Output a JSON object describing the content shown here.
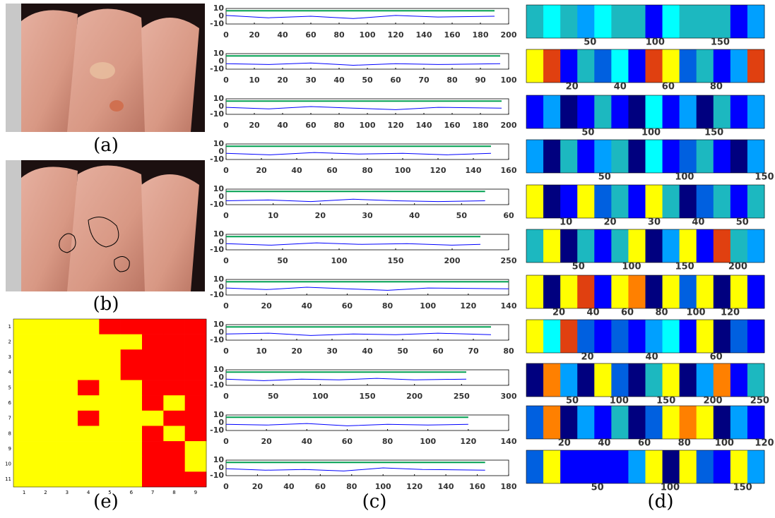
{
  "panel_labels": [
    "(a)",
    "(b)",
    "(e)",
    "(c)",
    "(d)"
  ],
  "chart_data": [
    {
      "type": "heatmap",
      "colors": [
        "#ffff00",
        "#ff0000"
      ],
      "xlim": [
        0.5,
        9.5
      ],
      "ylim": [
        0.5,
        11.5
      ],
      "xticks": [
        1,
        2,
        3,
        4,
        5,
        6,
        7,
        8,
        9
      ],
      "yticks": [
        1,
        2,
        3,
        4,
        5,
        6,
        7,
        8,
        9,
        10,
        11
      ],
      "values": [
        [
          0,
          0,
          0,
          0,
          1,
          1,
          1,
          1,
          1
        ],
        [
          0,
          0,
          0,
          0,
          0,
          0,
          1,
          1,
          1
        ],
        [
          0,
          0,
          0,
          0,
          0,
          1,
          1,
          1,
          1
        ],
        [
          0,
          0,
          0,
          0,
          0,
          1,
          1,
          1,
          1
        ],
        [
          0,
          0,
          0,
          1,
          0,
          0,
          1,
          1,
          1
        ],
        [
          0,
          0,
          0,
          0,
          0,
          0,
          1,
          0,
          1
        ],
        [
          0,
          0,
          0,
          1,
          0,
          0,
          0,
          1,
          1
        ],
        [
          0,
          0,
          0,
          0,
          0,
          0,
          1,
          0,
          1
        ],
        [
          0,
          0,
          0,
          0,
          0,
          0,
          1,
          1,
          0
        ],
        [
          0,
          0,
          0,
          0,
          0,
          0,
          1,
          1,
          0
        ],
        [
          0,
          0,
          0,
          0,
          0,
          0,
          1,
          1,
          1
        ]
      ]
    },
    {
      "type": "line",
      "xlim": [
        0,
        200
      ],
      "xticks": [
        0,
        20,
        40,
        60,
        80,
        100,
        120,
        140,
        160,
        180,
        200
      ],
      "ylim": [
        -10,
        10
      ],
      "yticks": [
        -10,
        0,
        10
      ],
      "x": [
        0,
        30,
        60,
        90,
        120,
        150,
        190
      ],
      "series": [
        {
          "color": "#0000ff",
          "values": [
            1,
            -2,
            0,
            -3,
            1,
            -1,
            0
          ]
        },
        {
          "color": "#00a050",
          "values": [
            7,
            7,
            7,
            7,
            7,
            7,
            7
          ]
        }
      ]
    },
    {
      "type": "line",
      "xlim": [
        0,
        100
      ],
      "xticks": [
        0,
        10,
        20,
        30,
        40,
        50,
        60,
        70,
        80,
        90,
        100
      ],
      "ylim": [
        -10,
        10
      ],
      "yticks": [
        -10,
        0,
        10
      ],
      "x": [
        0,
        15,
        30,
        45,
        60,
        75,
        97
      ],
      "series": [
        {
          "color": "#0000ff",
          "values": [
            -3,
            -4,
            -2,
            -5,
            -3,
            -4,
            -3
          ]
        },
        {
          "color": "#00a050",
          "values": [
            7,
            7,
            7,
            7,
            7,
            7,
            7
          ]
        }
      ]
    },
    {
      "type": "line",
      "xlim": [
        0,
        200
      ],
      "xticks": [
        0,
        20,
        40,
        60,
        80,
        100,
        120,
        140,
        160,
        180,
        200
      ],
      "ylim": [
        -10,
        10
      ],
      "yticks": [
        -10,
        0,
        10
      ],
      "x": [
        0,
        30,
        60,
        90,
        120,
        150,
        195
      ],
      "series": [
        {
          "color": "#0000ff",
          "values": [
            -1,
            -3,
            0,
            -2,
            -4,
            -1,
            -2
          ]
        },
        {
          "color": "#00a050",
          "values": [
            7,
            7,
            7,
            7,
            7,
            7,
            7
          ]
        }
      ]
    },
    {
      "type": "line",
      "xlim": [
        0,
        160
      ],
      "xticks": [
        0,
        20,
        40,
        60,
        80,
        100,
        120,
        140,
        160
      ],
      "ylim": [
        -10,
        10
      ],
      "yticks": [
        -10,
        0,
        10
      ],
      "x": [
        0,
        25,
        50,
        75,
        100,
        125,
        150
      ],
      "series": [
        {
          "color": "#0000ff",
          "values": [
            -2,
            -4,
            -1,
            -3,
            -2,
            -4,
            -2
          ]
        },
        {
          "color": "#00a050",
          "values": [
            7,
            7,
            7,
            7,
            7,
            7,
            7
          ]
        }
      ]
    },
    {
      "type": "line",
      "xlim": [
        0,
        60
      ],
      "xticks": [
        0,
        10,
        20,
        30,
        40,
        50,
        60
      ],
      "ylim": [
        -10,
        10
      ],
      "yticks": [
        -10,
        0,
        10
      ],
      "x": [
        0,
        9,
        18,
        27,
        36,
        45,
        55
      ],
      "series": [
        {
          "color": "#0000ff",
          "values": [
            -5,
            -4,
            -6,
            -3,
            -5,
            -6,
            -5
          ]
        },
        {
          "color": "#00a050",
          "values": [
            7,
            7,
            7,
            7,
            7,
            7,
            7
          ]
        }
      ]
    },
    {
      "type": "line",
      "xlim": [
        0,
        250
      ],
      "xticks": [
        0,
        50,
        100,
        150,
        200,
        250
      ],
      "ylim": [
        -10,
        10
      ],
      "yticks": [
        -10,
        0,
        10
      ],
      "x": [
        0,
        40,
        80,
        120,
        160,
        200,
        225
      ],
      "series": [
        {
          "color": "#0000ff",
          "values": [
            -2,
            -4,
            -1,
            -3,
            -2,
            -4,
            -3
          ]
        },
        {
          "color": "#00a050",
          "values": [
            7,
            7,
            7,
            7,
            7,
            7,
            7
          ]
        }
      ]
    },
    {
      "type": "line",
      "xlim": [
        0,
        140
      ],
      "xticks": [
        0,
        20,
        40,
        60,
        80,
        100,
        120,
        140
      ],
      "ylim": [
        -10,
        10
      ],
      "yticks": [
        -10,
        0,
        10
      ],
      "x": [
        0,
        20,
        40,
        60,
        80,
        100,
        140
      ],
      "series": [
        {
          "color": "#0000ff",
          "values": [
            -1,
            -3,
            0,
            -2,
            -4,
            -1,
            -2
          ]
        },
        {
          "color": "#00a050",
          "values": [
            7,
            7,
            7,
            7,
            7,
            7,
            7
          ]
        }
      ]
    },
    {
      "type": "line",
      "xlim": [
        0,
        80
      ],
      "xticks": [
        0,
        10,
        20,
        30,
        40,
        50,
        60,
        70,
        80
      ],
      "ylim": [
        -10,
        10
      ],
      "yticks": [
        -10,
        0,
        10
      ],
      "x": [
        0,
        12,
        24,
        36,
        48,
        60,
        75
      ],
      "series": [
        {
          "color": "#0000ff",
          "values": [
            -2,
            -1,
            -4,
            -2,
            -3,
            -1,
            -3
          ]
        },
        {
          "color": "#00a050",
          "values": [
            7,
            7,
            7,
            7,
            7,
            7,
            7
          ]
        }
      ]
    },
    {
      "type": "line",
      "xlim": [
        0,
        300
      ],
      "xticks": [
        0,
        50,
        100,
        150,
        200,
        250,
        300
      ],
      "ylim": [
        -10,
        10
      ],
      "yticks": [
        -10,
        0,
        10
      ],
      "x": [
        0,
        40,
        80,
        120,
        160,
        200,
        255
      ],
      "series": [
        {
          "color": "#0000ff",
          "values": [
            -2,
            -4,
            -2,
            -3,
            -1,
            -3,
            -2
          ]
        },
        {
          "color": "#00a050",
          "values": [
            7,
            7,
            7,
            7,
            7,
            7,
            7
          ]
        }
      ]
    },
    {
      "type": "line",
      "xlim": [
        0,
        140
      ],
      "xticks": [
        0,
        20,
        40,
        60,
        80,
        100,
        120,
        140
      ],
      "ylim": [
        -10,
        10
      ],
      "yticks": [
        -10,
        0,
        10
      ],
      "x": [
        0,
        20,
        40,
        60,
        80,
        100,
        120
      ],
      "series": [
        {
          "color": "#0000ff",
          "values": [
            -2,
            -3,
            -1,
            -4,
            -2,
            -3,
            -2
          ]
        },
        {
          "color": "#00a050",
          "values": [
            7,
            7,
            7,
            7,
            7,
            7,
            7
          ]
        }
      ]
    },
    {
      "type": "line",
      "xlim": [
        0,
        180
      ],
      "xticks": [
        0,
        20,
        40,
        60,
        80,
        100,
        120,
        140,
        160,
        180
      ],
      "ylim": [
        -10,
        10
      ],
      "yticks": [
        -10,
        0,
        10
      ],
      "x": [
        0,
        25,
        50,
        75,
        100,
        125,
        165
      ],
      "series": [
        {
          "color": "#0000ff",
          "values": [
            -1,
            -3,
            -2,
            -4,
            0,
            -2,
            -3
          ]
        },
        {
          "color": "#00a050",
          "values": [
            7,
            7,
            7,
            7,
            7,
            7,
            7
          ]
        }
      ]
    },
    {
      "type": "stripes",
      "colors": [
        "#00007f",
        "#0000ff",
        "#0060e0",
        "#00a0ff",
        "#1cb8c0",
        "#00ffff",
        "#ffff00",
        "#ff8000",
        "#e04010"
      ],
      "xlim": [
        1,
        184
      ],
      "xticks": [
        50,
        100,
        150
      ],
      "values": [
        4,
        5,
        4,
        3,
        5,
        4,
        4,
        1,
        5,
        4,
        4,
        4,
        1,
        3
      ]
    },
    {
      "type": "stripes",
      "colors": [
        "#00007f",
        "#0000ff",
        "#0060e0",
        "#00a0ff",
        "#1cb8c0",
        "#00ffff",
        "#ffff00",
        "#ff8000",
        "#e04010"
      ],
      "xlim": [
        1,
        100
      ],
      "xticks": [
        20,
        40,
        60,
        80
      ],
      "values": [
        6,
        8,
        1,
        4,
        2,
        5,
        1,
        8,
        6,
        2,
        4,
        1,
        3,
        8
      ]
    },
    {
      "type": "stripes",
      "colors": [
        "#00007f",
        "#0000ff",
        "#0060e0",
        "#00a0ff",
        "#1cb8c0",
        "#00ffff",
        "#ffff00",
        "#ff8000",
        "#e04010"
      ],
      "xlim": [
        1,
        190
      ],
      "xticks": [
        50,
        100,
        150
      ],
      "values": [
        1,
        3,
        0,
        1,
        4,
        1,
        0,
        5,
        1,
        3,
        0,
        4,
        1,
        3
      ]
    },
    {
      "type": "stripes",
      "colors": [
        "#00007f",
        "#0000ff",
        "#0060e0",
        "#00a0ff",
        "#1cb8c0",
        "#00ffff",
        "#ffff00",
        "#ff8000",
        "#e04010"
      ],
      "xlim": [
        1,
        150
      ],
      "xticks": [
        50,
        100,
        150
      ],
      "values": [
        3,
        0,
        4,
        1,
        3,
        4,
        0,
        5,
        1,
        2,
        4,
        1,
        0,
        3
      ]
    },
    {
      "type": "stripes",
      "colors": [
        "#00007f",
        "#0000ff",
        "#0060e0",
        "#00a0ff",
        "#1cb8c0",
        "#00ffff",
        "#ffff00",
        "#ff8000",
        "#e04010"
      ],
      "xlim": [
        1,
        55
      ],
      "xticks": [
        10,
        20,
        30,
        40,
        50
      ],
      "values": [
        6,
        0,
        1,
        6,
        2,
        4,
        1,
        6,
        4,
        0,
        2,
        4,
        1,
        4
      ]
    },
    {
      "type": "stripes",
      "colors": [
        "#00007f",
        "#0000ff",
        "#0060e0",
        "#00a0ff",
        "#1cb8c0",
        "#00ffff",
        "#ffff00",
        "#ff8000",
        "#e04010"
      ],
      "xlim": [
        1,
        225
      ],
      "xticks": [
        50,
        100,
        150,
        200
      ],
      "values": [
        4,
        6,
        0,
        4,
        1,
        4,
        6,
        0,
        3,
        6,
        1,
        8,
        4,
        3
      ]
    },
    {
      "type": "stripes",
      "colors": [
        "#00007f",
        "#0000ff",
        "#0060e0",
        "#00a0ff",
        "#1cb8c0",
        "#00ffff",
        "#ffff00",
        "#ff8000",
        "#e04010"
      ],
      "xlim": [
        1,
        140
      ],
      "xticks": [
        20,
        40,
        60,
        80,
        100,
        120
      ],
      "values": [
        6,
        0,
        6,
        8,
        1,
        6,
        7,
        0,
        6,
        2,
        6,
        0,
        6,
        1
      ]
    },
    {
      "type": "stripes",
      "colors": [
        "#00007f",
        "#0000ff",
        "#0060e0",
        "#00a0ff",
        "#1cb8c0",
        "#00ffff",
        "#ffff00",
        "#ff8000",
        "#e04010"
      ],
      "xlim": [
        1,
        75
      ],
      "xticks": [
        20,
        40,
        60
      ],
      "values": [
        6,
        5,
        8,
        2,
        1,
        2,
        1,
        3,
        5,
        1,
        6,
        0,
        2,
        1
      ]
    },
    {
      "type": "stripes",
      "colors": [
        "#00007f",
        "#0000ff",
        "#0060e0",
        "#00a0ff",
        "#1cb8c0",
        "#00ffff",
        "#ffff00",
        "#ff8000",
        "#e04010"
      ],
      "xlim": [
        1,
        255
      ],
      "xticks": [
        50,
        100,
        150,
        200,
        250
      ],
      "values": [
        0,
        7,
        3,
        0,
        6,
        2,
        0,
        4,
        6,
        0,
        3,
        7,
        1,
        4
      ]
    },
    {
      "type": "stripes",
      "colors": [
        "#00007f",
        "#0000ff",
        "#0060e0",
        "#00a0ff",
        "#1cb8c0",
        "#00ffff",
        "#ffff00",
        "#ff8000",
        "#e04010"
      ],
      "xlim": [
        1,
        120
      ],
      "xticks": [
        20,
        40,
        60,
        80,
        100,
        120
      ],
      "values": [
        2,
        7,
        0,
        3,
        1,
        4,
        0,
        2,
        6,
        7,
        6,
        0,
        3,
        1
      ]
    },
    {
      "type": "stripes",
      "colors": [
        "#00007f",
        "#0000ff",
        "#0060e0",
        "#00a0ff",
        "#1cb8c0",
        "#00ffff",
        "#ffff00",
        "#ff8000",
        "#e04010"
      ],
      "xlim": [
        1,
        165
      ],
      "xticks": [
        50,
        100,
        150
      ],
      "values": [
        2,
        6,
        1,
        1,
        1,
        1,
        3,
        6,
        0,
        6,
        2,
        1,
        6,
        3
      ]
    }
  ]
}
